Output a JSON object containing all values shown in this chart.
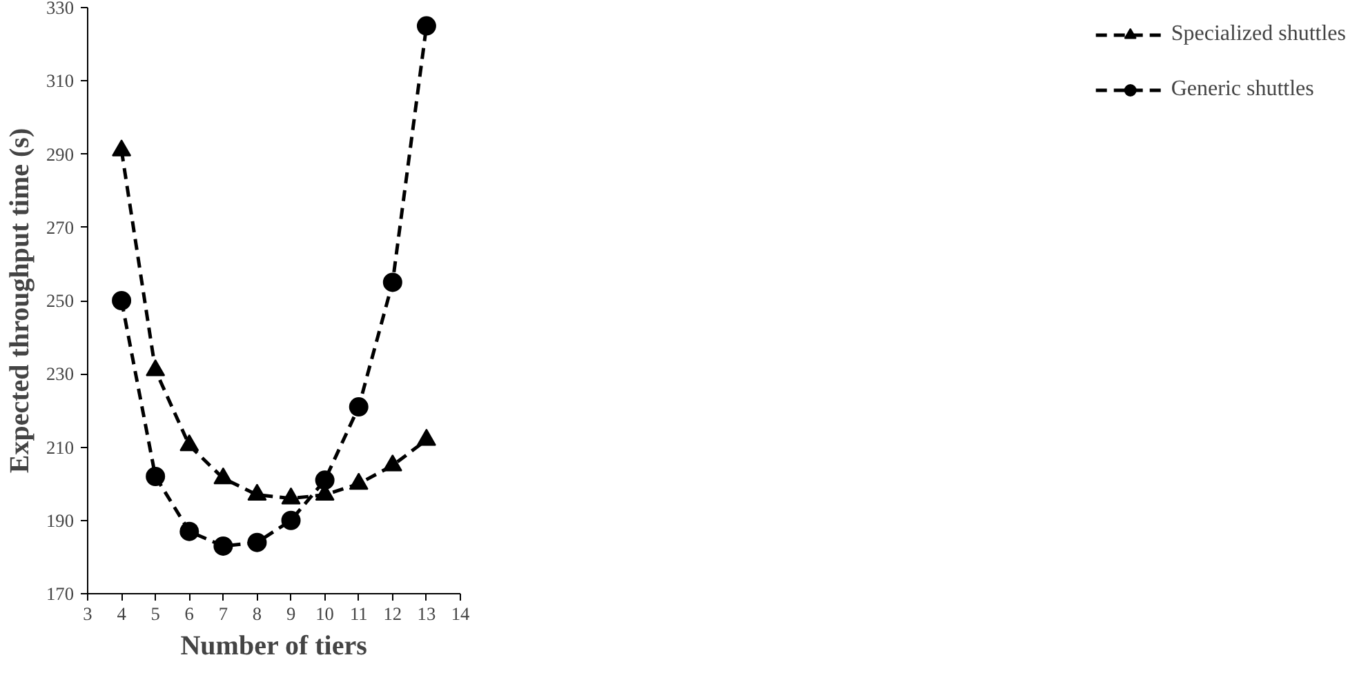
{
  "chart_data": {
    "type": "line",
    "xlabel": "Number of tiers",
    "ylabel": "Expected throughput time (s)",
    "x": [
      4,
      5,
      6,
      7,
      8,
      9,
      10,
      11,
      12,
      13
    ],
    "series": [
      {
        "name": "Specialized shuttles",
        "color": "#000000",
        "marker": "triangle",
        "values": [
          291,
          231,
          210.5,
          201.5,
          197,
          196,
          197,
          200,
          205,
          212
        ]
      },
      {
        "name": "Generic shuttles",
        "color": "#000000",
        "marker": "circle",
        "values": [
          250,
          202,
          187,
          183,
          184,
          190,
          201,
          221,
          255,
          325
        ]
      }
    ],
    "xlim": [
      3,
      14
    ],
    "xticks": [
      3,
      4,
      5,
      6,
      7,
      8,
      9,
      10,
      11,
      12,
      13,
      14
    ],
    "ylim": [
      170,
      330
    ],
    "yticks": [
      170,
      190,
      210,
      230,
      250,
      270,
      290,
      310,
      330
    ],
    "grid": false,
    "legend": "right",
    "line_style": "dashed"
  }
}
